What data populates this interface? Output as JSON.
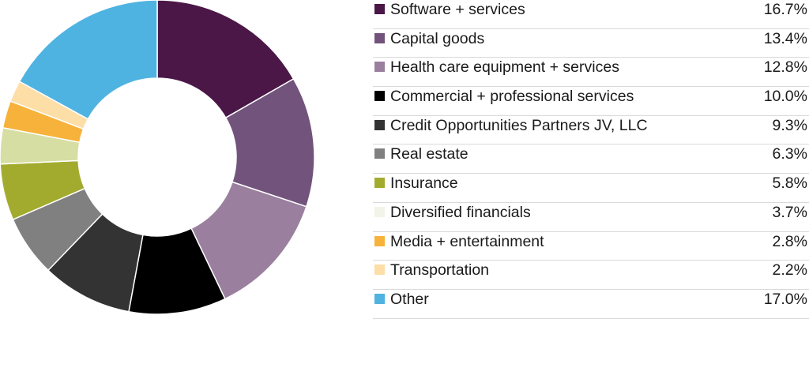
{
  "chart_data": {
    "type": "pie",
    "style": "donut",
    "legend_position": "right",
    "categories": [
      "Software + services",
      "Capital goods",
      "Health care equipment + services",
      "Commercial + professional services",
      "Credit Opportunities Partners JV, LLC",
      "Real estate",
      "Insurance",
      "Diversified financials",
      "Media + entertainment",
      "Transportation",
      "Other"
    ],
    "values": [
      16.7,
      13.4,
      12.8,
      10.0,
      9.3,
      6.3,
      5.8,
      3.7,
      2.8,
      2.2,
      17.0
    ],
    "value_labels": [
      "16.7%",
      "13.4%",
      "12.8%",
      "10.0%",
      "9.3%",
      "6.3%",
      "5.8%",
      "3.7%",
      "2.8%",
      "2.2%",
      "17.0%"
    ],
    "colors": [
      "#4a1747",
      "#72537b",
      "#9a7f9e",
      "#000000",
      "#333333",
      "#808080",
      "#a3ab2f",
      "#d6dea3",
      "#f7b23b",
      "#fddea6",
      "#4fb3e1"
    ],
    "legend_swatch_colors": [
      "#4a1747",
      "#72537b",
      "#9a7f9e",
      "#000000",
      "#333333",
      "#808080",
      "#a3ab2f",
      "#f3f4e9",
      "#f7b23b",
      "#fddea6",
      "#4fb3e1"
    ],
    "title": "",
    "xlabel": "",
    "ylabel": ""
  }
}
